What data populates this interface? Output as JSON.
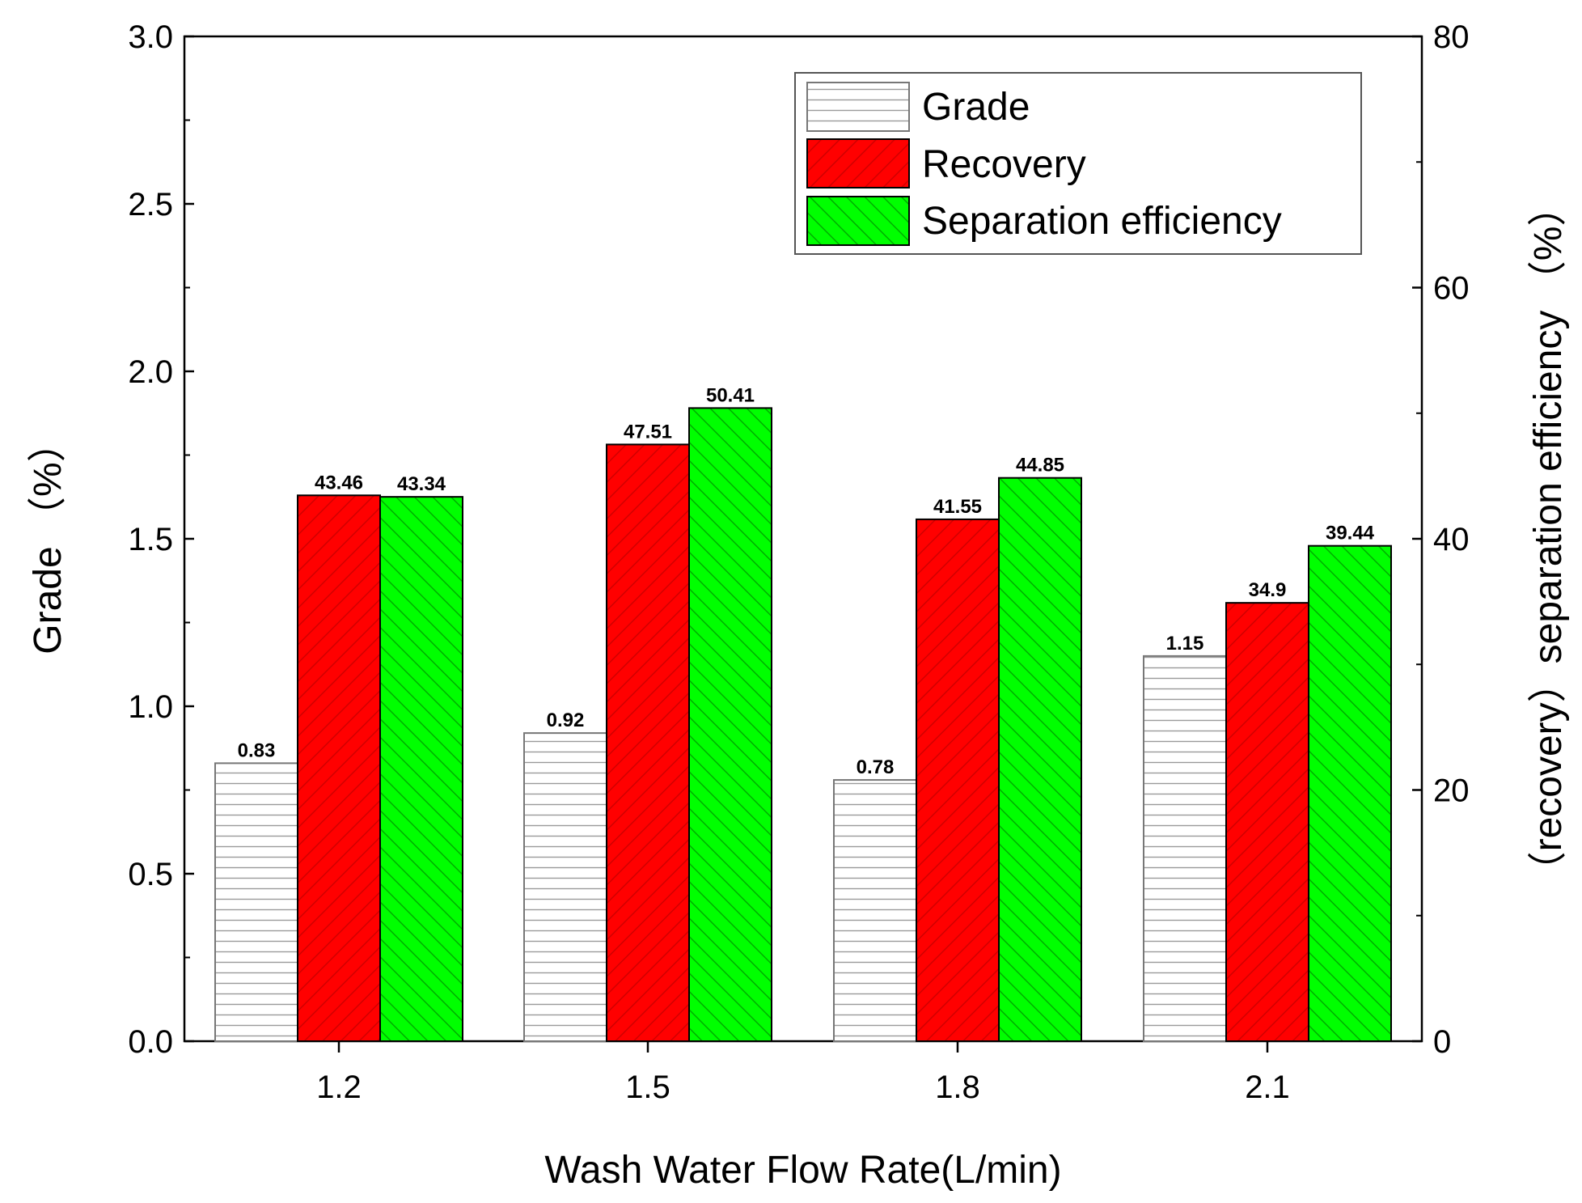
{
  "chart_data": {
    "type": "bar",
    "xlabel": "Wash Water Flow Rate(L/min)",
    "ylabel_left": "Grade （%）",
    "ylabel_right": "（recovery）separation efficiency （%）",
    "categories": [
      "1.2",
      "1.5",
      "1.8",
      "2.1"
    ],
    "left_axis": {
      "ylim": [
        0,
        3.0
      ],
      "ticks": [
        "0.0",
        "0.5",
        "1.0",
        "1.5",
        "2.0",
        "2.5",
        "3.0"
      ]
    },
    "right_axis": {
      "ylim": [
        0,
        80
      ],
      "ticks": [
        "0",
        "20",
        "40",
        "60",
        "80"
      ]
    },
    "series": [
      {
        "name": "Grade",
        "axis": "left",
        "values": [
          0.83,
          0.92,
          0.78,
          1.15
        ],
        "labels": [
          "0.83",
          "0.92",
          "0.78",
          "1.15"
        ],
        "color": "#ffffff",
        "pattern": "horizontal-lines"
      },
      {
        "name": "Recovery",
        "axis": "right",
        "values": [
          43.46,
          47.51,
          41.55,
          34.9
        ],
        "labels": [
          "43.46",
          "47.51",
          "41.55",
          "34.9"
        ],
        "color": "#ff0000",
        "pattern": "forward-diagonal"
      },
      {
        "name": "Separation efficiency",
        "axis": "right",
        "values": [
          43.34,
          50.41,
          44.85,
          39.44
        ],
        "labels": [
          "43.34",
          "50.41",
          "44.85",
          "39.44"
        ],
        "color": "#00ff00",
        "pattern": "back-diagonal"
      }
    ],
    "legend": {
      "position": "top-right",
      "entries": [
        "Grade",
        "Recovery",
        "Separation efficiency"
      ]
    }
  }
}
